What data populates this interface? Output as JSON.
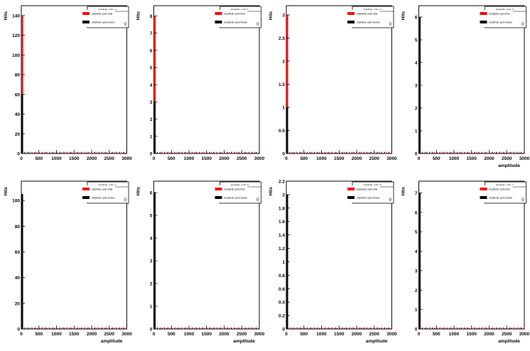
{
  "colors": {
    "series_red": "#ff0000",
    "series_black": "#000000",
    "axis": "#000000",
    "background": "#ffffff"
  },
  "chart_data": [
    {
      "type": "bar",
      "xlabel": "",
      "ylabel": "Hits",
      "xlim": [
        0,
        3000
      ],
      "ylim": [
        0,
        150
      ],
      "yticks": [
        0,
        20,
        40,
        60,
        80,
        100,
        120,
        140
      ],
      "x_first_bin": [
        0,
        50
      ],
      "series": [
        {
          "name": "amplitude cycle-total",
          "color": "#ff0000",
          "value": 140
        },
        {
          "name": "amplitude cycle-Swave",
          "color": "#000000",
          "value": 60
        }
      ],
      "stats_title": "amplitude_cycle_0...",
      "stats_label": "Std Dev",
      "stats_value": "0"
    },
    {
      "type": "bar",
      "xlabel": "",
      "ylabel": "Hits",
      "xlim": [
        0,
        3000
      ],
      "ylim": [
        0,
        8.6
      ],
      "yticks": [
        0,
        1,
        2,
        3,
        4,
        5,
        6,
        7,
        8
      ],
      "x_first_bin": [
        0,
        50
      ],
      "series": [
        {
          "name": "amplitude cycle-total",
          "color": "#ff0000",
          "value": 8
        },
        {
          "name": "amplitude cycle-Swave",
          "color": "#000000",
          "value": 3
        }
      ],
      "stats_title": "amplitude_cycle_1...",
      "stats_label": "Std Dev",
      "stats_value": "0"
    },
    {
      "type": "bar",
      "xlabel": "",
      "ylabel": "Hits",
      "xlim": [
        0,
        3000
      ],
      "ylim": [
        0,
        3.2
      ],
      "yticks": [
        0,
        0.5,
        1,
        1.5,
        2,
        2.5,
        3
      ],
      "x_first_bin": [
        0,
        50
      ],
      "series": [
        {
          "name": "amplitude cycle-total",
          "color": "#ff0000",
          "value": 3
        },
        {
          "name": "amplitude cycle-Swave",
          "color": "#000000",
          "value": 1
        }
      ],
      "stats_title": "amplitude_cycle_2...",
      "stats_label": "Std Dev",
      "stats_value": "0"
    },
    {
      "type": "bar",
      "xlabel": "amplitude",
      "ylabel": "Hits",
      "xlim": [
        0,
        3000
      ],
      "ylim": [
        0,
        6.5
      ],
      "yticks": [
        0,
        1,
        2,
        3,
        4,
        5,
        6
      ],
      "x_first_bin": [
        0,
        50
      ],
      "series": [
        {
          "name": "amplitude cycle-total",
          "color": "#ff0000",
          "value": 6
        },
        {
          "name": "amplitude cycle-Swave",
          "color": "#000000",
          "value": 6
        }
      ],
      "stats_title": "amplitude_cycle_3...",
      "stats_label": "Std Dev",
      "stats_value": "0"
    },
    {
      "type": "bar",
      "xlabel": "amplitude",
      "ylabel": "Hits",
      "xlim": [
        0,
        3000
      ],
      "ylim": [
        0,
        115
      ],
      "yticks": [
        0,
        20,
        40,
        60,
        80,
        100
      ],
      "x_first_bin": [
        0,
        50
      ],
      "series": [
        {
          "name": "amplitude cycle-total",
          "color": "#ff0000",
          "value": 105
        },
        {
          "name": "amplitude cycle-Swave",
          "color": "#000000",
          "value": 105
        }
      ],
      "stats_title": "amplitude_cycle_4...",
      "stats_label": "Std Dev",
      "stats_value": "0"
    },
    {
      "type": "bar",
      "xlabel": "amplitude",
      "ylabel": "Hits",
      "xlim": [
        0,
        3000
      ],
      "ylim": [
        0,
        6.5
      ],
      "yticks": [
        0,
        1,
        2,
        3,
        4,
        5,
        6
      ],
      "x_first_bin": [
        0,
        50
      ],
      "series": [
        {
          "name": "amplitude cycle-total",
          "color": "#ff0000",
          "value": 6
        },
        {
          "name": "amplitude cycle-Swave",
          "color": "#000000",
          "value": 6
        }
      ],
      "stats_title": "amplitude_cycle_5...",
      "stats_label": "Std Dev",
      "stats_value": "0"
    },
    {
      "type": "bar",
      "xlabel": "amplitude",
      "ylabel": "Hits",
      "xlim": [
        0,
        3000
      ],
      "ylim": [
        0,
        2.2
      ],
      "yticks": [
        0,
        0.2,
        0.4,
        0.6,
        0.8,
        1,
        1.2,
        1.4,
        1.6,
        1.8,
        2,
        2.2
      ],
      "x_first_bin": [
        0,
        50
      ],
      "series": [
        {
          "name": "amplitude cycle-total",
          "color": "#ff0000",
          "value": 2
        },
        {
          "name": "amplitude cycle-Swave",
          "color": "#000000",
          "value": 2
        }
      ],
      "stats_title": "amplitude_cycle_6...",
      "stats_label": "Std Dev",
      "stats_value": "0"
    },
    {
      "type": "bar",
      "xlabel": "amplitude",
      "ylabel": "Hits",
      "xlim": [
        0,
        3000
      ],
      "ylim": [
        0,
        7.6
      ],
      "yticks": [
        0,
        1,
        2,
        3,
        4,
        5,
        6,
        7
      ],
      "x_first_bin": [
        0,
        50
      ],
      "series": [
        {
          "name": "amplitude cycle-total",
          "color": "#ff0000",
          "value": 7
        },
        {
          "name": "amplitude cycle-Swave",
          "color": "#000000",
          "value": 7
        }
      ],
      "stats_title": "amplitude_cycle_7...",
      "stats_label": "Std Dev",
      "stats_value": "0"
    }
  ]
}
